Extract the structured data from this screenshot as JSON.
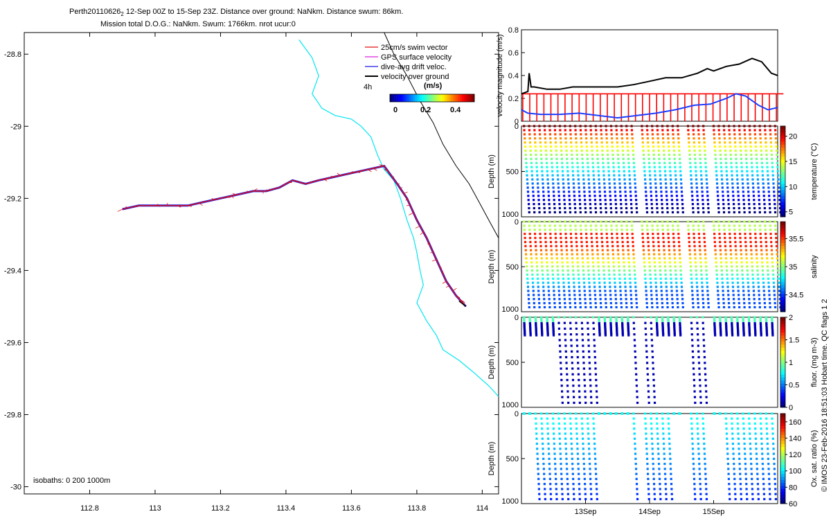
{
  "header": {
    "title_main": "Perth20110626",
    "title_sub": "2",
    "title_rest": " 12-Sep 00Z to 15-Sep 23Z. Distance over ground: NaNkm. Distance swum: 86km.",
    "line2": "Mission total D.O.G.: NaNkm. Swum: 1766km. nrot ucur:0"
  },
  "footer_note": "© IMOS 23-Feb-2016 18:51:03 Hobart time. QC flags 1  2",
  "colors": {
    "coast": "#00e5f0",
    "track_red": "#e01010",
    "track_blue": "#1a1ae6",
    "speed_black": "#000000",
    "dive_red": "#ff0000",
    "drift_blue": "#1a3cff"
  },
  "chart_data": [
    {
      "type": "scatter",
      "name": "map",
      "xlim": [
        112.6,
        114.05
      ],
      "ylim": [
        -30.02,
        -28.74
      ],
      "x_ticks": [
        112.8,
        113,
        113.2,
        113.4,
        113.6,
        113.8,
        114
      ],
      "x_tick_labels": [
        "112.8",
        "113",
        "113.2",
        "113.4",
        "113.6",
        "113.8",
        "114"
      ],
      "y_ticks": [
        -28.8,
        -29,
        -29.2,
        -29.4,
        -29.6,
        -29.8,
        -30
      ],
      "y_tick_labels": [
        "-28.8",
        "-29",
        "-29.2",
        "-29.4",
        "-29.6",
        "-29.8",
        "-30"
      ],
      "legend": {
        "items": [
          "25cm/s swim vector",
          "GPS surface velocity",
          "dive-avg drift veloc.",
          "velocity over ground"
        ],
        "duration": "4h",
        "colorbar_title": "(m/s)",
        "colorbar_ticks": [
          "0",
          "0.2",
          "0.4"
        ]
      },
      "isobaths_label": "isobaths: 0   200  1000m",
      "coastline_0m": [
        [
          113.44,
          -28.76
        ],
        [
          113.48,
          -28.81
        ],
        [
          113.5,
          -28.86
        ],
        [
          113.48,
          -28.91
        ],
        [
          113.51,
          -28.95
        ],
        [
          113.55,
          -28.97
        ],
        [
          113.6,
          -28.98
        ],
        [
          113.63,
          -29.0
        ],
        [
          113.66,
          -29.03
        ],
        [
          113.68,
          -29.08
        ],
        [
          113.7,
          -29.12
        ],
        [
          113.73,
          -29.15
        ],
        [
          113.75,
          -29.2
        ],
        [
          113.77,
          -29.26
        ],
        [
          113.79,
          -29.31
        ],
        [
          113.8,
          -29.35
        ],
        [
          113.81,
          -29.4
        ],
        [
          113.82,
          -29.44
        ],
        [
          113.8,
          -29.49
        ],
        [
          113.83,
          -29.54
        ],
        [
          113.86,
          -29.58
        ],
        [
          113.88,
          -29.62
        ],
        [
          113.93,
          -29.65
        ],
        [
          113.97,
          -29.68
        ],
        [
          114.02,
          -29.72
        ],
        [
          114.05,
          -29.75
        ]
      ],
      "isobath_200m": [
        [
          113.7,
          -28.74
        ],
        [
          113.73,
          -28.8
        ],
        [
          113.77,
          -28.86
        ],
        [
          113.81,
          -28.93
        ],
        [
          113.85,
          -28.99
        ],
        [
          113.88,
          -29.05
        ],
        [
          113.92,
          -29.11
        ],
        [
          113.96,
          -29.16
        ],
        [
          113.99,
          -29.21
        ],
        [
          114.02,
          -29.26
        ],
        [
          114.05,
          -29.31
        ]
      ],
      "glider_track": [
        [
          112.9,
          -29.23
        ],
        [
          112.95,
          -29.22
        ],
        [
          113.0,
          -29.22
        ],
        [
          113.05,
          -29.22
        ],
        [
          113.1,
          -29.22
        ],
        [
          113.15,
          -29.21
        ],
        [
          113.2,
          -29.2
        ],
        [
          113.25,
          -29.19
        ],
        [
          113.3,
          -29.18
        ],
        [
          113.34,
          -29.18
        ],
        [
          113.38,
          -29.17
        ],
        [
          113.42,
          -29.15
        ],
        [
          113.46,
          -29.16
        ],
        [
          113.5,
          -29.15
        ],
        [
          113.55,
          -29.14
        ],
        [
          113.6,
          -29.13
        ],
        [
          113.65,
          -29.12
        ],
        [
          113.7,
          -29.11
        ],
        [
          113.74,
          -29.16
        ],
        [
          113.77,
          -29.2
        ],
        [
          113.8,
          -29.26
        ],
        [
          113.83,
          -29.31
        ],
        [
          113.86,
          -29.37
        ],
        [
          113.89,
          -29.43
        ],
        [
          113.92,
          -29.47
        ],
        [
          113.95,
          -29.5
        ]
      ]
    },
    {
      "type": "line",
      "name": "velocity",
      "ylabel": "velocity magnitude (m/s)",
      "xlim": [
        0,
        4
      ],
      "ylim": [
        0,
        0.8
      ],
      "y_ticks": [
        0,
        0.2,
        0.4,
        0.6,
        0.8
      ],
      "y_tick_labels": [
        "0",
        "0.2",
        "0.4",
        "0.6",
        "0.8"
      ],
      "series": [
        {
          "name": "",
          "color": "#000000",
          "x": [
            0,
            0.1,
            0.12,
            0.15,
            0.2,
            0.4,
            0.6,
            0.8,
            1.0,
            1.2,
            1.5,
            1.75,
            2.0,
            2.25,
            2.5,
            2.75,
            2.9,
            3.0,
            3.2,
            3.4,
            3.6,
            3.75,
            3.9,
            4.0
          ],
          "y": [
            0.24,
            0.26,
            0.42,
            0.3,
            0.3,
            0.28,
            0.28,
            0.3,
            0.3,
            0.3,
            0.3,
            0.32,
            0.35,
            0.38,
            0.38,
            0.42,
            0.46,
            0.44,
            0.48,
            0.5,
            0.55,
            0.52,
            0.42,
            0.4
          ]
        },
        {
          "name": "",
          "color": "#1a3cff",
          "x": [
            0,
            0.1,
            0.3,
            0.6,
            0.9,
            1.2,
            1.5,
            1.8,
            2.1,
            2.4,
            2.7,
            2.95,
            3.2,
            3.35,
            3.5,
            3.7,
            3.85,
            4.0
          ],
          "y": [
            0.1,
            0.07,
            0.06,
            0.06,
            0.07,
            0.05,
            0.03,
            0.05,
            0.07,
            0.1,
            0.14,
            0.15,
            0.2,
            0.24,
            0.22,
            0.14,
            0.1,
            0.12
          ]
        }
      ]
    },
    {
      "type": "scatter",
      "name": "temperature",
      "ylabel": "Depth (m)",
      "colorbar_label": "temperature (°C)",
      "ylim": [
        1000,
        0
      ],
      "y_ticks": [
        0,
        500,
        1000
      ],
      "y_tick_labels": [
        "0",
        "500",
        "1000"
      ],
      "colorbar_range": [
        4,
        22
      ],
      "colorbar_ticks": [
        5,
        10,
        15,
        20
      ],
      "colorbar_tick_labels": [
        "5",
        "10",
        "15",
        "20"
      ]
    },
    {
      "type": "scatter",
      "name": "salinity",
      "ylabel": "Depth (m)",
      "colorbar_label": "salinity",
      "ylim": [
        1000,
        0
      ],
      "y_ticks": [
        0,
        500,
        1000
      ],
      "y_tick_labels": [
        "0",
        "500",
        "1000"
      ],
      "colorbar_range": [
        34.2,
        35.8
      ],
      "colorbar_ticks": [
        34.5,
        35,
        35.5
      ],
      "colorbar_tick_labels": [
        "34.5",
        "35",
        "35.5"
      ]
    },
    {
      "type": "scatter",
      "name": "fluorescence",
      "ylabel": "Depth (m)",
      "colorbar_label": "fluor. (mg m-3)",
      "ylim": [
        1000,
        0
      ],
      "y_ticks": [
        0,
        500,
        1000
      ],
      "y_tick_labels": [
        "0",
        "500",
        "1000"
      ],
      "colorbar_range": [
        0,
        2
      ],
      "colorbar_ticks": [
        0,
        0.5,
        1,
        1.5,
        2
      ],
      "colorbar_tick_labels": [
        "0",
        "0.5",
        "1",
        "1.5",
        "2"
      ]
    },
    {
      "type": "scatter",
      "name": "oxygen",
      "ylabel": "Depth (m)",
      "colorbar_label": "Ox. sat. ratio (%)",
      "ylim": [
        1000,
        0
      ],
      "y_ticks": [
        0,
        500,
        1000
      ],
      "y_tick_labels": [
        "0",
        "500",
        "1000"
      ],
      "colorbar_range": [
        60,
        170
      ],
      "colorbar_ticks": [
        60,
        80,
        100,
        120,
        140,
        160
      ],
      "colorbar_tick_labels": [
        "60",
        "80",
        "100",
        "120",
        "140",
        "160"
      ],
      "x_ticks": [
        1,
        2,
        3
      ],
      "x_tick_labels": [
        "13Sep",
        "14Sep",
        "15Sep"
      ]
    }
  ]
}
